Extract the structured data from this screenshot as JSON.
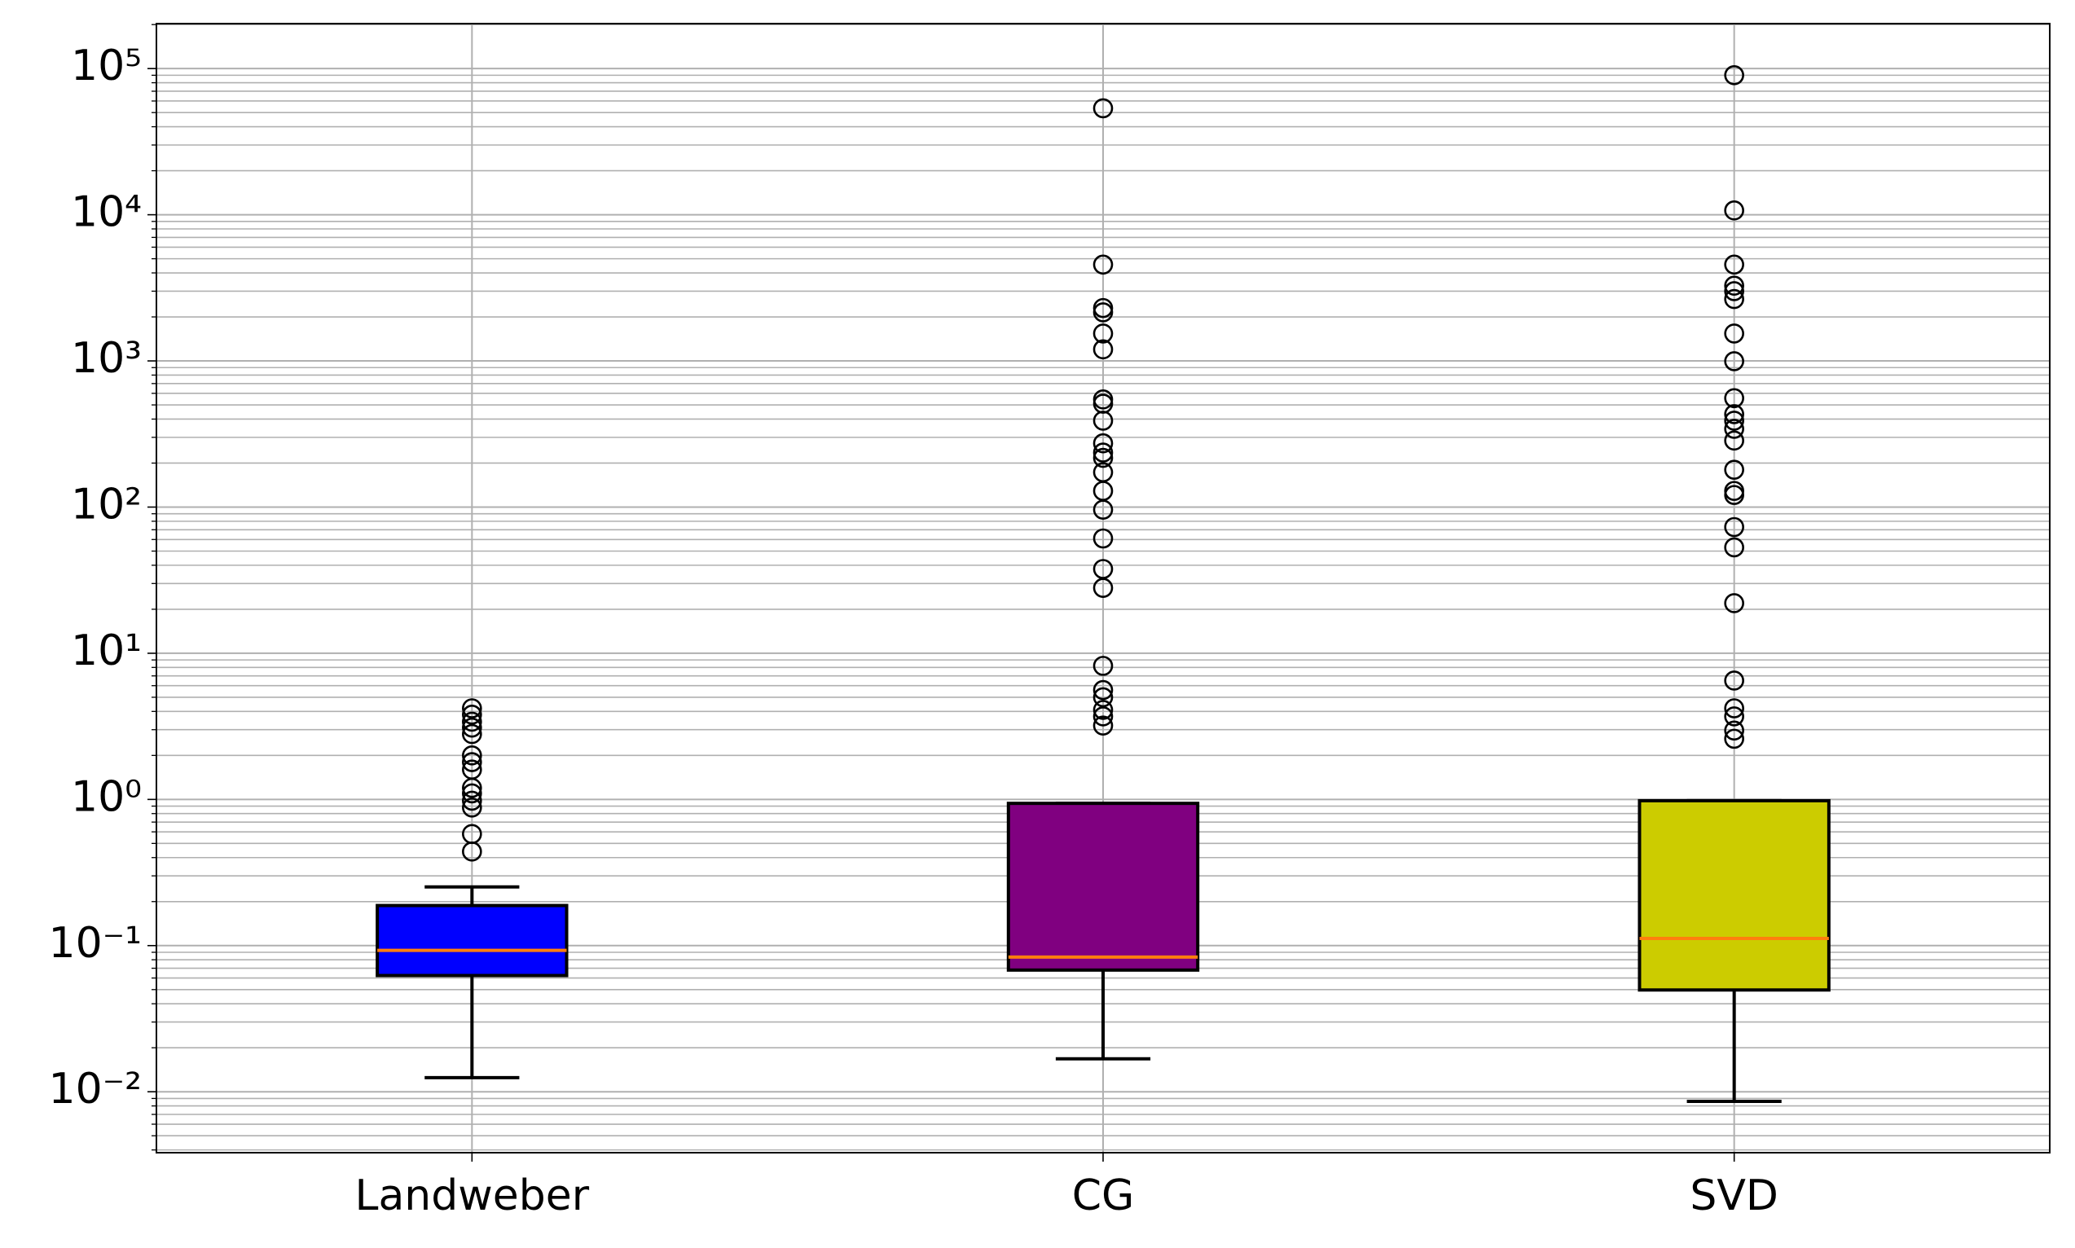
{
  "chart_data": {
    "type": "box",
    "categories": [
      "Landweber",
      "CG",
      "SVD"
    ],
    "boxes": [
      {
        "color": "#0000ff",
        "whislo": 0.0125,
        "q1": 0.0624,
        "median": 0.0927,
        "q3": 0.188,
        "whishi": 0.252,
        "outliers": [
          4.2,
          3.8,
          3.4,
          3.1,
          2.8,
          2.0,
          1.8,
          1.6,
          1.2,
          1.1,
          0.98,
          0.88,
          0.58,
          0.44
        ]
      },
      {
        "color": "#800080",
        "whislo": 0.0168,
        "q1": 0.068,
        "median": 0.0835,
        "q3": 0.94,
        "whishi": 0.94,
        "outliers": [
          53500,
          4560,
          2300,
          2150,
          1540,
          1200,
          545,
          510,
          390,
          273,
          236,
          217,
          173,
          129,
          96,
          61,
          37.7,
          28,
          8.2,
          5.6,
          5.0,
          4.1,
          3.7,
          3.2
        ]
      },
      {
        "color": "#cccc00",
        "whislo": 0.0086,
        "q1": 0.0497,
        "median": 0.112,
        "q3": 0.98,
        "whishi": 0.98,
        "outliers": [
          90100,
          10700,
          4560,
          3270,
          3000,
          2650,
          1540,
          995,
          556,
          432,
          390,
          343,
          285,
          180,
          129,
          121,
          73,
          53,
          22,
          6.5,
          4.2,
          3.7,
          2.96,
          2.6
        ]
      }
    ],
    "median_color": "#ff7f0e",
    "log_y": true,
    "grid": true,
    "minor_grid": true,
    "ylim": [
      0.00383,
      203000
    ],
    "yticks": [
      {
        "value": 0.01,
        "label": "10⁻²"
      },
      {
        "value": 0.1,
        "label": "10⁻¹"
      },
      {
        "value": 1,
        "label": "10⁰"
      },
      {
        "value": 10,
        "label": "10¹"
      },
      {
        "value": 100,
        "label": "10²"
      },
      {
        "value": 1000,
        "label": "10³"
      },
      {
        "value": 10000,
        "label": "10⁴"
      },
      {
        "value": 100000,
        "label": "10⁵"
      }
    ]
  }
}
